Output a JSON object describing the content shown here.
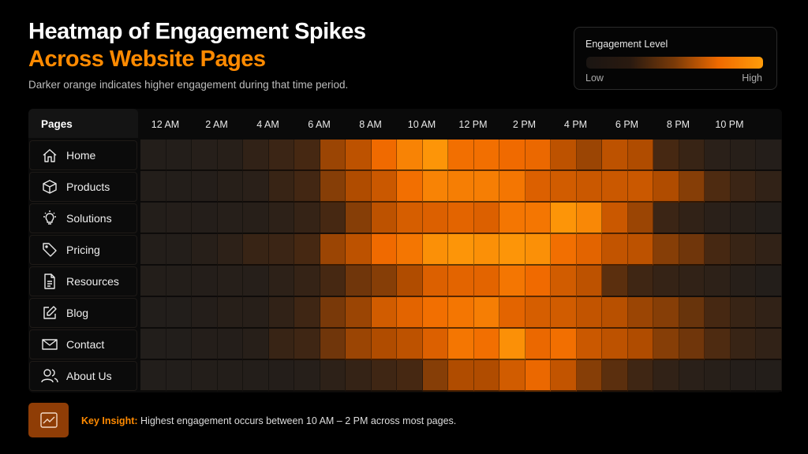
{
  "title_line1": "Heatmap of Engagement Spikes",
  "title_line2": "Across Website Pages",
  "subtitle": "Darker orange indicates higher engagement during that time period.",
  "legend": {
    "title": "Engagement Level",
    "low": "Low",
    "high": "High"
  },
  "colors": {
    "low": "#1c1c1c",
    "mid": "#b04c00",
    "accent": "#ff8a00",
    "high": "#ff9c0a"
  },
  "insight": {
    "label": "Key Insight:",
    "text": "Highest engagement occurs between 10 AM – 2 PM across most pages.",
    "icon": "trend-chart-icon"
  },
  "chart_data": {
    "type": "heatmap",
    "title": "Heatmap of Engagement Spikes Across Website Pages",
    "row_header": "Pages",
    "x_tick_labels": [
      "12 AM",
      "2 AM",
      "4 AM",
      "6 AM",
      "8 AM",
      "10 AM",
      "12 PM",
      "2 PM",
      "4 PM",
      "6 PM",
      "8 PM",
      "10 PM"
    ],
    "value_range": [
      0,
      1
    ],
    "rows": [
      {
        "label": "Home",
        "icon": "home-icon",
        "values": [
          0.05,
          0.05,
          0.07,
          0.08,
          0.15,
          0.22,
          0.3,
          0.5,
          0.6,
          0.8,
          0.9,
          0.97,
          0.82,
          0.82,
          0.8,
          0.78,
          0.6,
          0.5,
          0.6,
          0.55,
          0.3,
          0.2,
          0.1,
          0.08,
          0.06
        ]
      },
      {
        "label": "Products",
        "icon": "box-icon",
        "values": [
          0.05,
          0.05,
          0.06,
          0.08,
          0.1,
          0.2,
          0.28,
          0.45,
          0.55,
          0.65,
          0.82,
          0.9,
          0.88,
          0.88,
          0.85,
          0.72,
          0.68,
          0.65,
          0.65,
          0.65,
          0.55,
          0.45,
          0.32,
          0.22,
          0.15
        ]
      },
      {
        "label": "Solutions",
        "icon": "lightbulb-icon",
        "values": [
          0.05,
          0.06,
          0.06,
          0.07,
          0.08,
          0.12,
          0.18,
          0.3,
          0.45,
          0.6,
          0.7,
          0.72,
          0.75,
          0.72,
          0.85,
          0.85,
          0.97,
          0.92,
          0.65,
          0.5,
          0.22,
          0.15,
          0.1,
          0.08,
          0.05
        ]
      },
      {
        "label": "Pricing",
        "icon": "tag-icon",
        "values": [
          0.05,
          0.05,
          0.08,
          0.12,
          0.2,
          0.22,
          0.3,
          0.5,
          0.6,
          0.8,
          0.85,
          0.95,
          0.97,
          0.95,
          0.97,
          0.95,
          0.82,
          0.75,
          0.62,
          0.6,
          0.45,
          0.4,
          0.3,
          0.2,
          0.15
        ]
      },
      {
        "label": "Resources",
        "icon": "document-icon",
        "values": [
          0.05,
          0.05,
          0.06,
          0.07,
          0.07,
          0.12,
          0.18,
          0.3,
          0.4,
          0.45,
          0.55,
          0.72,
          0.75,
          0.75,
          0.85,
          0.8,
          0.68,
          0.6,
          0.35,
          0.25,
          0.18,
          0.15,
          0.12,
          0.08,
          0.05
        ]
      },
      {
        "label": "Blog",
        "icon": "edit-icon",
        "values": [
          0.04,
          0.04,
          0.06,
          0.08,
          0.08,
          0.15,
          0.25,
          0.42,
          0.5,
          0.68,
          0.75,
          0.82,
          0.85,
          0.88,
          0.75,
          0.7,
          0.68,
          0.62,
          0.58,
          0.5,
          0.45,
          0.38,
          0.3,
          0.2,
          0.15
        ]
      },
      {
        "label": "Contact",
        "icon": "mail-icon",
        "values": [
          0.04,
          0.04,
          0.06,
          0.06,
          0.08,
          0.2,
          0.25,
          0.4,
          0.5,
          0.55,
          0.6,
          0.72,
          0.85,
          0.82,
          0.95,
          0.78,
          0.82,
          0.65,
          0.6,
          0.55,
          0.45,
          0.4,
          0.32,
          0.2,
          0.15
        ]
      },
      {
        "label": "About Us",
        "icon": "users-icon",
        "values": [
          0.04,
          0.04,
          0.05,
          0.05,
          0.05,
          0.06,
          0.07,
          0.12,
          0.18,
          0.25,
          0.3,
          0.45,
          0.55,
          0.55,
          0.68,
          0.78,
          0.62,
          0.45,
          0.35,
          0.25,
          0.15,
          0.1,
          0.08,
          0.06,
          0.05
        ]
      }
    ]
  }
}
